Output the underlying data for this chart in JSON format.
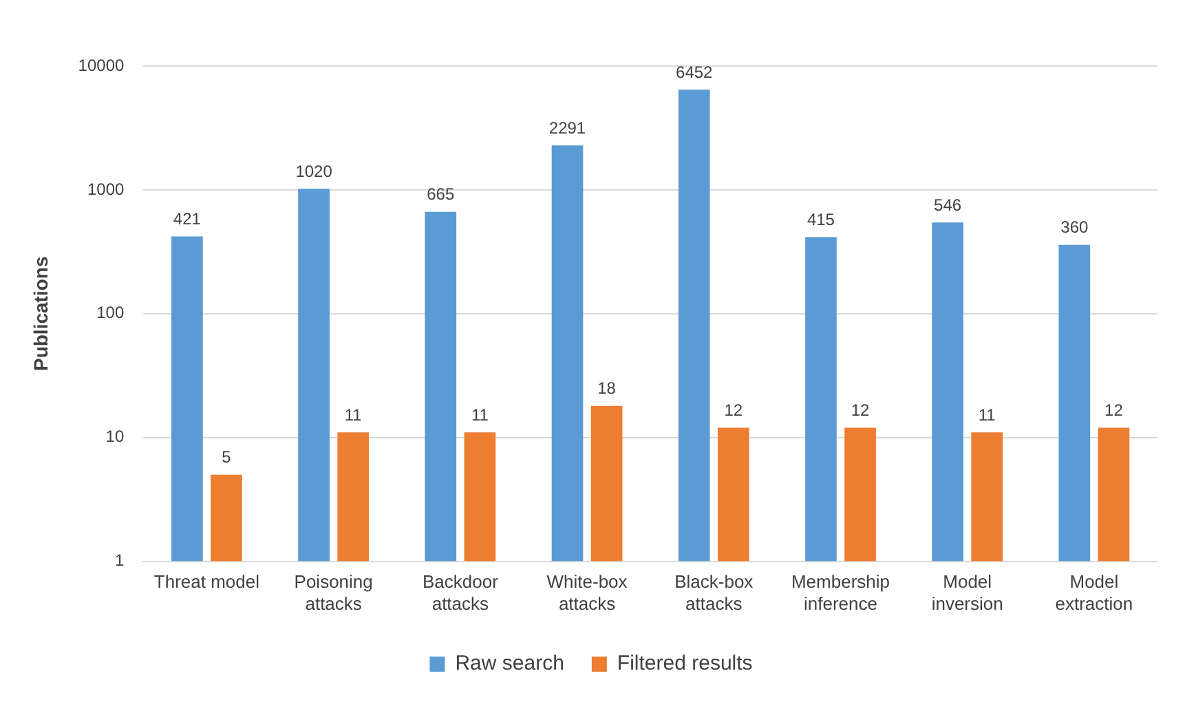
{
  "chart_data": {
    "type": "bar",
    "ylabel": "Publications",
    "categories": [
      "Threat model",
      "Poisoning attacks",
      "Backdoor attacks",
      "White-box attacks",
      "Black-box attacks",
      "Membership inference",
      "Model inversion",
      "Model extraction"
    ],
    "series": [
      {
        "name": "Raw search",
        "color": "#5b9bd5",
        "values": [
          421,
          1020,
          665,
          2291,
          6452,
          415,
          546,
          360
        ]
      },
      {
        "name": "Filtered results",
        "color": "#ed7d31",
        "values": [
          5,
          11,
          11,
          18,
          12,
          12,
          11,
          12
        ]
      }
    ],
    "log": "y",
    "ylim": [
      1,
      10000
    ],
    "yticks": [
      1,
      10,
      100,
      1000,
      10000
    ],
    "grid": "y",
    "legend": "bottom",
    "data_labels": true
  }
}
